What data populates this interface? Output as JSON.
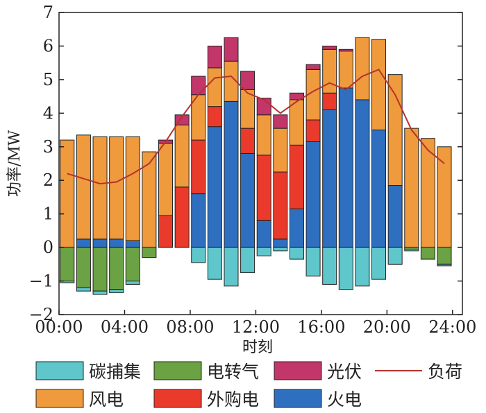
{
  "chart_data": {
    "type": "bar",
    "stacked": true,
    "ylabel": "功率/MW",
    "xlabel": "时刻",
    "ylim": [
      -2,
      7
    ],
    "yticks": [
      "−2",
      "−1",
      "0",
      "1",
      "2",
      "3",
      "4",
      "5",
      "6",
      "7"
    ],
    "xticks": [
      "00:00",
      "04:00",
      "08:00",
      "12:00",
      "16:00",
      "20:00",
      "24:00"
    ],
    "hours": [
      1,
      2,
      3,
      4,
      5,
      6,
      7,
      8,
      9,
      10,
      11,
      12,
      13,
      14,
      15,
      16,
      17,
      18,
      19,
      20,
      21,
      22,
      23,
      24
    ],
    "series": [
      {
        "name": "火电",
        "color": "#2f6fbf",
        "values": [
          0,
          0.25,
          0.25,
          0.25,
          0.2,
          0,
          0,
          0,
          1.6,
          3.6,
          4.35,
          2.8,
          0.8,
          0.25,
          1.15,
          3.15,
          4.1,
          4.75,
          4.4,
          3.5,
          1.85,
          0,
          0,
          0
        ]
      },
      {
        "name": "外购电",
        "color": "#ea3a2c",
        "values": [
          0,
          0,
          0,
          0,
          0,
          0,
          0.95,
          1.8,
          1.6,
          0.6,
          0,
          0.75,
          1.95,
          2.0,
          1.9,
          0.65,
          0.5,
          0,
          0,
          0,
          0,
          0,
          0,
          0
        ]
      },
      {
        "name": "风电",
        "color": "#ef9a3c",
        "values": [
          3.2,
          3.1,
          3.05,
          3.05,
          3.1,
          2.85,
          2.15,
          1.85,
          1.35,
          1.15,
          1.2,
          1.15,
          1.2,
          1.3,
          1.35,
          1.5,
          1.3,
          1.1,
          1.85,
          2.7,
          3.3,
          3.55,
          3.25,
          3.0
        ]
      },
      {
        "name": "光伏",
        "color": "#c2366a",
        "values": [
          0,
          0,
          0,
          0,
          0,
          0,
          0.1,
          0.3,
          0.55,
          0.65,
          0.7,
          0.55,
          0.5,
          0.4,
          0.2,
          0.15,
          0.1,
          0.05,
          0,
          0,
          0,
          0,
          0,
          0
        ]
      },
      {
        "name": "电转气",
        "color": "#6aa244",
        "values": [
          -1.0,
          -1.2,
          -1.3,
          -1.25,
          -1.0,
          -0.3,
          0,
          0,
          0,
          0,
          0,
          0,
          0,
          0,
          0,
          0,
          0,
          0,
          0,
          0,
          0,
          -0.05,
          -0.35,
          -0.5
        ]
      },
      {
        "name": "碳捕集",
        "color": "#5fc7cc",
        "values": [
          -0.05,
          -0.1,
          -0.1,
          -0.1,
          -0.1,
          0,
          0,
          0,
          -0.45,
          -0.95,
          -1.15,
          -0.75,
          -0.25,
          -0.1,
          -0.35,
          -0.85,
          -1.1,
          -1.25,
          -1.15,
          -0.95,
          -0.5,
          -0.05,
          0,
          -0.05
        ]
      }
    ],
    "load": {
      "name": "负荷",
      "color": "#b5332e",
      "values": [
        2.2,
        2.05,
        1.9,
        1.95,
        2.2,
        2.5,
        3.15,
        3.9,
        4.55,
        5.05,
        5.1,
        4.6,
        4.4,
        4.0,
        4.35,
        4.65,
        4.9,
        4.7,
        5.1,
        5.3,
        4.55,
        3.5,
        2.9,
        2.5
      ]
    },
    "legend": {
      "row1": [
        "碳捕集",
        "电转气",
        "光伏",
        "负荷"
      ],
      "row2": [
        "风电",
        "外购电",
        "火电"
      ]
    }
  }
}
